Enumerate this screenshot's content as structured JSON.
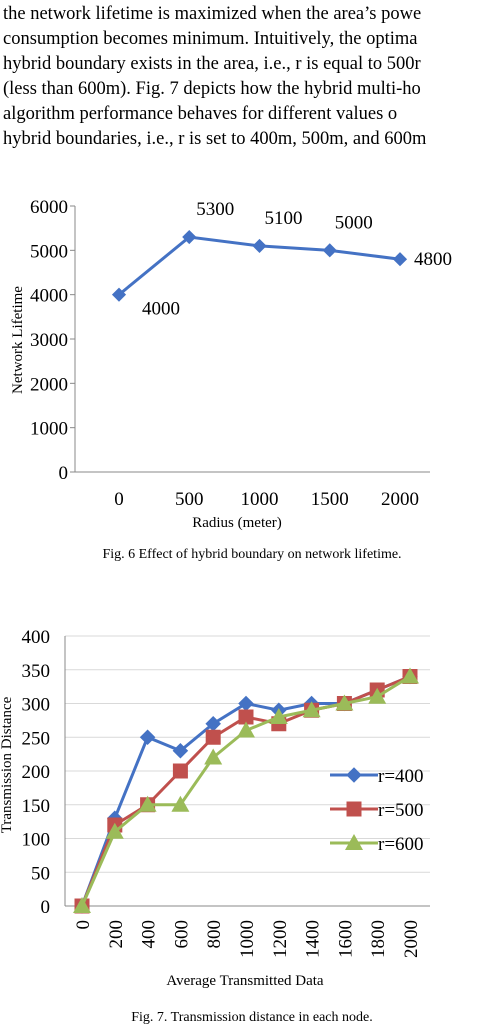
{
  "paragraph": [
    "the network lifetime is maximized when the area’s powe",
    "consumption becomes minimum. Intuitively, the optima",
    "hybrid boundary exists in the area, i.e., r is equal to 500r",
    "(less than 600m). Fig. 7 depicts how the hybrid multi-ho",
    "algorithm performance behaves for different values o",
    "hybrid boundaries, i.e., r is set to 400m, 500m, and 600m"
  ],
  "fig6": {
    "caption": "Fig. 6 Effect of hybrid boundary on network lifetime.",
    "chart_data": {
      "type": "line",
      "title": "",
      "xlabel": "Radius (meter)",
      "ylabel": "Network Lifetime",
      "categories": [
        "0",
        "500",
        "1000",
        "1500",
        "2000"
      ],
      "x": [
        0,
        500,
        1000,
        1500,
        2000
      ],
      "values": [
        4000,
        5300,
        5100,
        5000,
        4800
      ],
      "data_labels": [
        "4000",
        "5300",
        "5100",
        "5000",
        "4800"
      ],
      "yticks": [
        "0",
        "1000",
        "2000",
        "3000",
        "4000",
        "5000",
        "6000"
      ],
      "ylim": [
        0,
        6000
      ],
      "grid": false,
      "color": "#4472C4"
    }
  },
  "fig7": {
    "caption": "Fig. 7. Transmission distance in each node.",
    "chart_data": {
      "type": "line",
      "title": "",
      "xlabel": "Average Transmitted Data",
      "ylabel": "Transmission Distance",
      "categories": [
        "0",
        "200",
        "400",
        "600",
        "800",
        "1000",
        "1200",
        "1400",
        "1600",
        "1800",
        "2000"
      ],
      "x": [
        0,
        200,
        400,
        600,
        800,
        1000,
        1200,
        1400,
        1600,
        1800,
        2000
      ],
      "yticks": [
        "0",
        "50",
        "100",
        "150",
        "200",
        "250",
        "300",
        "350",
        "400"
      ],
      "ylim": [
        0,
        400
      ],
      "grid": true,
      "legend_position": "right",
      "series": [
        {
          "name": "r=400",
          "color": "#4472C4",
          "marker": "diamond",
          "values": [
            0,
            130,
            250,
            230,
            270,
            300,
            290,
            300,
            300,
            null,
            340
          ]
        },
        {
          "name": "r=500",
          "color": "#C0504D",
          "marker": "square",
          "values": [
            0,
            120,
            150,
            200,
            250,
            280,
            270,
            290,
            300,
            320,
            340
          ]
        },
        {
          "name": "r=600",
          "color": "#9BBB59",
          "marker": "triangle",
          "values": [
            0,
            110,
            150,
            150,
            220,
            260,
            280,
            290,
            300,
            310,
            340
          ]
        }
      ]
    }
  }
}
